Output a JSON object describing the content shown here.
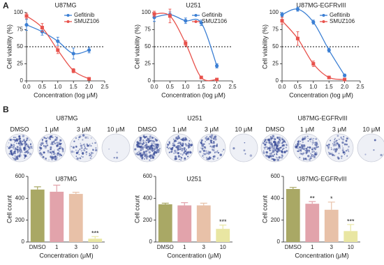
{
  "panel_labels": [
    "A",
    "B"
  ],
  "colony_assays": [
    {
      "title": "U87MG",
      "wells": [
        "DMSO",
        "1 μM",
        "3 μM",
        "10 μM"
      ]
    },
    {
      "title": "U251",
      "wells": [
        "DMSO",
        "1 μM",
        "3 μM",
        "10 μM"
      ]
    },
    {
      "title": "U87MG-EGFRvIII",
      "wells": [
        "DMSO",
        "1 μM",
        "3 μM",
        "10 μM"
      ]
    }
  ],
  "chart_data": [
    {
      "type": "line",
      "title": "U87MG",
      "xlabel": "Concentration (log μM)",
      "ylabel": "Cell viability (%)",
      "x": [
        0,
        0.5,
        1,
        1.5,
        2
      ],
      "hline": 50,
      "legend": "upper right",
      "series": [
        {
          "name": "Gefitinib",
          "color": "#3b7fd4",
          "values": [
            82,
            72,
            58,
            40,
            45
          ],
          "errors": [
            8,
            5,
            6,
            8,
            4
          ]
        },
        {
          "name": "SMUZ106",
          "color": "#e8524c",
          "values": [
            95,
            78,
            45,
            15,
            3
          ],
          "errors": [
            4,
            6,
            5,
            3,
            2
          ]
        }
      ],
      "xlim": [
        0,
        2.5
      ],
      "xticks": [
        {
          "value": 0,
          "label": "0.0"
        },
        0.5,
        {
          "value": 1,
          "label": "1.0"
        },
        1.5,
        {
          "value": 2,
          "label": "2.0"
        },
        2.5
      ],
      "ylim": [
        0,
        100
      ],
      "yticks": [
        0,
        25,
        50,
        75,
        100
      ]
    },
    {
      "type": "line",
      "title": "U251",
      "xlabel": "Concentration (log μM)",
      "ylabel": "Cell viability (%)",
      "x": [
        0,
        0.5,
        1,
        1.5,
        2
      ],
      "hline": 50,
      "legend": "upper right",
      "series": [
        {
          "name": "Gefitinib",
          "color": "#3b7fd4",
          "values": [
            93,
            97,
            88,
            85,
            22
          ],
          "errors": [
            6,
            4,
            4,
            4,
            3
          ]
        },
        {
          "name": "SMUZ106",
          "color": "#e8524c",
          "values": [
            98,
            95,
            55,
            5,
            2
          ],
          "errors": [
            4,
            10,
            4,
            2,
            1
          ]
        }
      ],
      "xlim": [
        0,
        2.5
      ],
      "xticks": [
        {
          "value": 0,
          "label": "0.0"
        },
        0.5,
        {
          "value": 1,
          "label": "1.0"
        },
        1.5,
        {
          "value": 2,
          "label": "2.0"
        },
        2.5
      ],
      "ylim": [
        0,
        100
      ],
      "yticks": [
        0,
        25,
        50,
        75,
        100
      ]
    },
    {
      "type": "line",
      "title": "U87MG-EGFRvIII",
      "xlabel": "Concentration (log μM)",
      "ylabel": "Cell viability (%)",
      "x": [
        0,
        0.5,
        1,
        1.5,
        2
      ],
      "hline": 50,
      "legend": "upper right",
      "series": [
        {
          "name": "Gefitinib",
          "color": "#3b7fd4",
          "values": [
            97,
            105,
            86,
            45,
            8
          ],
          "errors": [
            3,
            3,
            3,
            3,
            2
          ]
        },
        {
          "name": "SMUZ106",
          "color": "#e8524c",
          "values": [
            88,
            62,
            25,
            5,
            2
          ],
          "errors": [
            5,
            10,
            4,
            2,
            1
          ]
        }
      ],
      "xlim": [
        0,
        2.5
      ],
      "xticks": [
        {
          "value": 0,
          "label": "0.0"
        },
        0.5,
        {
          "value": 1,
          "label": "1.0"
        },
        1.5,
        {
          "value": 2,
          "label": "2.0"
        },
        2.5
      ],
      "ylim": [
        0,
        100
      ],
      "yticks": [
        0,
        25,
        50,
        75,
        100
      ]
    },
    {
      "type": "bar",
      "title": "U87MG",
      "xlabel": "Concentration (μM)",
      "ylabel": "Cell count",
      "categories": [
        "DMSO",
        "1",
        "3",
        "10"
      ],
      "values": [
        480,
        460,
        440,
        30
      ],
      "errors": [
        25,
        60,
        15,
        20
      ],
      "colors": [
        "#a9a865",
        "#e2a3ab",
        "#e8c1a8",
        "#e9e6a2"
      ],
      "significance": [
        null,
        null,
        null,
        "***"
      ],
      "ylim": [
        0,
        600
      ],
      "yticks": [
        0,
        200,
        400,
        600
      ]
    },
    {
      "type": "bar",
      "title": "U251",
      "xlabel": "Concentration (μM)",
      "ylabel": "Cell count",
      "categories": [
        "DMSO",
        "1",
        "3",
        "10"
      ],
      "values": [
        345,
        335,
        335,
        120
      ],
      "errors": [
        10,
        25,
        20,
        35
      ],
      "colors": [
        "#a9a865",
        "#e2a3ab",
        "#e8c1a8",
        "#e9e6a2"
      ],
      "significance": [
        null,
        null,
        null,
        "***"
      ],
      "ylim": [
        0,
        600
      ],
      "yticks": [
        0,
        200,
        400,
        600
      ]
    },
    {
      "type": "bar",
      "title": "U87MG-EGFRvIII",
      "xlabel": "Concentration (μM)",
      "ylabel": "Cell count",
      "categories": [
        "DMSO",
        "1",
        "3",
        "10"
      ],
      "values": [
        485,
        350,
        295,
        100
      ],
      "errors": [
        15,
        20,
        70,
        60
      ],
      "colors": [
        "#a9a865",
        "#e2a3ab",
        "#e8c1a8",
        "#e9e6a2"
      ],
      "significance": [
        null,
        "**",
        "*",
        "***"
      ],
      "ylim": [
        0,
        600
      ],
      "yticks": [
        0,
        200,
        400,
        600
      ]
    }
  ]
}
